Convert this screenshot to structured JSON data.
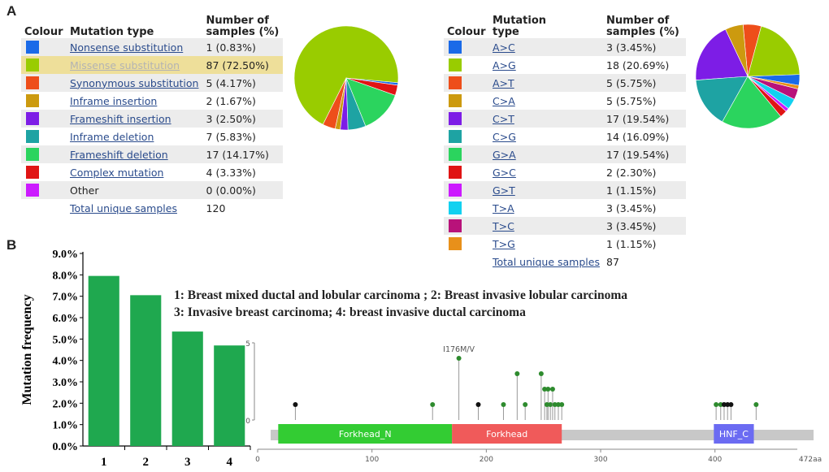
{
  "panel_labels": {
    "a": "A",
    "b": "B"
  },
  "table_left": {
    "headers": {
      "colour": "Colour",
      "type": "Mutation type",
      "count_line1": "Number of",
      "count_line2": "samples (%)"
    },
    "rows": [
      {
        "label": "Nonsense substitution",
        "value": "1 (0.83%)",
        "color": "#1a6ae8",
        "link": true
      },
      {
        "label": "Missense substitution",
        "value": "87 (72.50%)",
        "color": "#99cc00",
        "link": true
      },
      {
        "label": "Synonymous substitution",
        "value": "5 (4.17%)",
        "color": "#ee4e1a",
        "link": true
      },
      {
        "label": "Inframe insertion",
        "value": "2 (1.67%)",
        "color": "#cc9a0f",
        "link": true
      },
      {
        "label": "Frameshift insertion",
        "value": "3 (2.50%)",
        "color": "#7d1de6",
        "link": true
      },
      {
        "label": "Inframe deletion",
        "value": "7 (5.83%)",
        "color": "#1ea3a3",
        "link": true
      },
      {
        "label": "Frameshift deletion",
        "value": "17 (14.17%)",
        "color": "#2bd45e",
        "link": true
      },
      {
        "label": "Complex mutation",
        "value": "4 (3.33%)",
        "color": "#e01414",
        "link": true
      },
      {
        "label": "Other",
        "value": "0 (0.00%)",
        "color": "#cc1aff",
        "link": false
      }
    ],
    "total_label": "Total unique samples",
    "total_value": "120"
  },
  "table_right": {
    "headers": {
      "colour": "Colour",
      "type_line1": "Mutation",
      "type_line2": "type",
      "count_line1": "Number of",
      "count_line2": "samples (%)"
    },
    "rows": [
      {
        "label": "A>C",
        "value": "3 (3.45%)",
        "color": "#1a6ae8"
      },
      {
        "label": "A>G",
        "value": "18 (20.69%)",
        "color": "#99cc00"
      },
      {
        "label": "A>T",
        "value": "5 (5.75%)",
        "color": "#ee4e1a"
      },
      {
        "label": "C>A",
        "value": "5 (5.75%)",
        "color": "#cc9a0f"
      },
      {
        "label": "C>T",
        "value": "17 (19.54%)",
        "color": "#7d1de6"
      },
      {
        "label": "C>G",
        "value": "14 (16.09%)",
        "color": "#1ea3a3"
      },
      {
        "label": "G>A",
        "value": "17 (19.54%)",
        "color": "#2bd45e"
      },
      {
        "label": "G>C",
        "value": "2 (2.30%)",
        "color": "#e01414"
      },
      {
        "label": "G>T",
        "value": "1 (1.15%)",
        "color": "#cc1aff"
      },
      {
        "label": "T>A",
        "value": "3 (3.45%)",
        "color": "#12d1f0"
      },
      {
        "label": "T>C",
        "value": "3 (3.45%)",
        "color": "#b8127a"
      },
      {
        "label": "T>G",
        "value": "1 (1.15%)",
        "color": "#e8901a"
      }
    ],
    "total_label": "Total unique samples",
    "total_value": "87"
  },
  "chart_data": [
    {
      "type": "pie",
      "title": "",
      "categories": [
        "Nonsense substitution",
        "Missense substitution",
        "Synonymous substitution",
        "Inframe insertion",
        "Frameshift insertion",
        "Inframe deletion",
        "Frameshift deletion",
        "Complex mutation",
        "Other"
      ],
      "values": [
        1,
        87,
        5,
        2,
        3,
        7,
        17,
        4,
        0
      ],
      "colors": [
        "#1a6ae8",
        "#99cc00",
        "#ee4e1a",
        "#cc9a0f",
        "#7d1de6",
        "#1ea3a3",
        "#2bd45e",
        "#e01414",
        "#cc1aff"
      ]
    },
    {
      "type": "pie",
      "title": "",
      "categories": [
        "A>C",
        "A>G",
        "A>T",
        "C>A",
        "C>T",
        "C>G",
        "G>A",
        "G>C",
        "G>T",
        "T>A",
        "T>C",
        "T>G"
      ],
      "values": [
        3,
        18,
        5,
        5,
        17,
        14,
        17,
        2,
        1,
        3,
        3,
        1
      ],
      "colors": [
        "#1a6ae8",
        "#99cc00",
        "#ee4e1a",
        "#cc9a0f",
        "#7d1de6",
        "#1ea3a3",
        "#2bd45e",
        "#e01414",
        "#cc1aff",
        "#12d1f0",
        "#b8127a",
        "#e8901a"
      ]
    },
    {
      "type": "bar",
      "title": "",
      "ylabel": "Mutation frequency",
      "xlabel": "",
      "categories": [
        "1",
        "2",
        "3",
        "4"
      ],
      "values": [
        7.95,
        7.05,
        5.35,
        4.7
      ],
      "ylim": [
        0,
        9
      ],
      "yticks": [
        "0.0%",
        "1.0%",
        "2.0%",
        "3.0%",
        "4.0%",
        "5.0%",
        "6.0%",
        "7.0%",
        "8.0%",
        "9.0%"
      ],
      "color": "#1fa84f",
      "legend_line1": "1: Breast mixed ductal and lobular carcinoma ; 2: Breast invasive lobular carcinoma",
      "legend_line2": "3: Invasive breast carcinoma; 4: breast invasive ductal carcinoma"
    },
    {
      "type": "scatter",
      "title": "",
      "protein_length": 472,
      "protein_length_label": "472aa",
      "xticks": [
        "0",
        "100",
        "200",
        "300",
        "400"
      ],
      "ylim": [
        0,
        5
      ],
      "ytick_labels": [
        "0",
        "5"
      ],
      "annotation": "I176M/V",
      "domains": [
        {
          "name": "Forkhead_N",
          "start": 18,
          "end": 170,
          "color": "#33cc33"
        },
        {
          "name": "Forkhead",
          "start": 170,
          "end": 266,
          "color": "#f05a5a"
        },
        {
          "name": "HNF_C",
          "start": 399,
          "end": 434,
          "color": "#6b6bf2"
        }
      ],
      "lollipops": [
        {
          "pos": 33,
          "count": 1,
          "color": "black"
        },
        {
          "pos": 153,
          "count": 1,
          "color": "green"
        },
        {
          "pos": 176,
          "count": 4,
          "color": "green"
        },
        {
          "pos": 193,
          "count": 1,
          "color": "black"
        },
        {
          "pos": 215,
          "count": 1,
          "color": "green"
        },
        {
          "pos": 227,
          "count": 3,
          "color": "green"
        },
        {
          "pos": 234,
          "count": 1,
          "color": "green"
        },
        {
          "pos": 248,
          "count": 3,
          "color": "green"
        },
        {
          "pos": 251,
          "count": 2,
          "color": "green"
        },
        {
          "pos": 254,
          "count": 2,
          "color": "green"
        },
        {
          "pos": 253,
          "count": 1,
          "color": "green"
        },
        {
          "pos": 256,
          "count": 1,
          "color": "green"
        },
        {
          "pos": 258,
          "count": 2,
          "color": "green"
        },
        {
          "pos": 260,
          "count": 1,
          "color": "green"
        },
        {
          "pos": 263,
          "count": 1,
          "color": "green"
        },
        {
          "pos": 266,
          "count": 1,
          "color": "green"
        },
        {
          "pos": 401,
          "count": 1,
          "color": "green"
        },
        {
          "pos": 405,
          "count": 1,
          "color": "green"
        },
        {
          "pos": 408,
          "count": 1,
          "color": "black"
        },
        {
          "pos": 411,
          "count": 1,
          "color": "black"
        },
        {
          "pos": 414,
          "count": 1,
          "color": "black"
        },
        {
          "pos": 436,
          "count": 1,
          "color": "green"
        }
      ]
    }
  ]
}
